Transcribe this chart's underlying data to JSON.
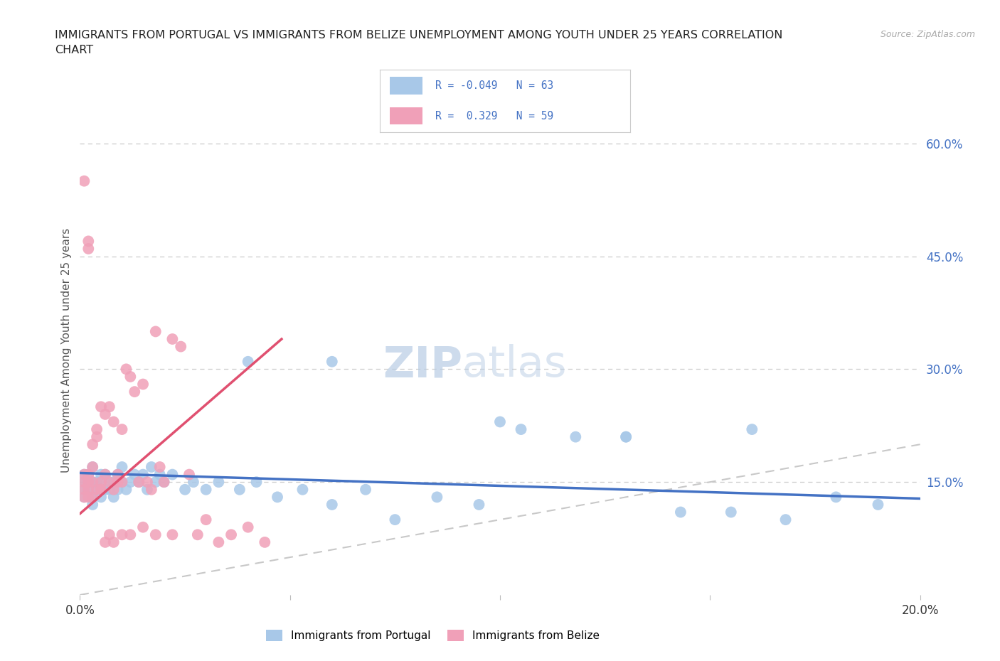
{
  "title": "IMMIGRANTS FROM PORTUGAL VS IMMIGRANTS FROM BELIZE UNEMPLOYMENT AMONG YOUTH UNDER 25 YEARS CORRELATION\nCHART",
  "source": "Source: ZipAtlas.com",
  "ylabel": "Unemployment Among Youth under 25 years",
  "xlim": [
    0.0,
    0.2
  ],
  "ylim": [
    0.0,
    0.65
  ],
  "y_ticks_right": [
    0.15,
    0.3,
    0.45,
    0.6
  ],
  "y_tick_labels_right": [
    "15.0%",
    "30.0%",
    "45.0%",
    "60.0%"
  ],
  "R_portugal": -0.049,
  "N_portugal": 63,
  "R_belize": 0.329,
  "N_belize": 59,
  "color_portugal": "#a8c8e8",
  "color_belize": "#f0a0b8",
  "color_portugal_line": "#4472c4",
  "color_belize_line": "#e05070",
  "color_diagonal": "#c8c8c8",
  "portugal_line_x": [
    0.0,
    0.2
  ],
  "portugal_line_y": [
    0.162,
    0.128
  ],
  "belize_line_x": [
    0.0,
    0.048
  ],
  "belize_line_y": [
    0.108,
    0.34
  ],
  "portugal_x": [
    0.001,
    0.001,
    0.001,
    0.001,
    0.002,
    0.002,
    0.002,
    0.003,
    0.003,
    0.003,
    0.003,
    0.004,
    0.004,
    0.005,
    0.005,
    0.005,
    0.006,
    0.006,
    0.007,
    0.007,
    0.008,
    0.008,
    0.009,
    0.009,
    0.01,
    0.01,
    0.011,
    0.012,
    0.013,
    0.014,
    0.015,
    0.016,
    0.017,
    0.018,
    0.019,
    0.02,
    0.022,
    0.025,
    0.027,
    0.03,
    0.033,
    0.038,
    0.042,
    0.047,
    0.053,
    0.06,
    0.068,
    0.075,
    0.085,
    0.095,
    0.105,
    0.118,
    0.13,
    0.143,
    0.155,
    0.168,
    0.04,
    0.06,
    0.1,
    0.13,
    0.16,
    0.18,
    0.19
  ],
  "portugal_y": [
    0.15,
    0.16,
    0.14,
    0.13,
    0.15,
    0.14,
    0.16,
    0.15,
    0.13,
    0.17,
    0.12,
    0.15,
    0.14,
    0.16,
    0.15,
    0.13,
    0.14,
    0.16,
    0.15,
    0.14,
    0.15,
    0.13,
    0.16,
    0.14,
    0.15,
    0.17,
    0.14,
    0.15,
    0.16,
    0.15,
    0.16,
    0.14,
    0.17,
    0.15,
    0.16,
    0.15,
    0.16,
    0.14,
    0.15,
    0.14,
    0.15,
    0.14,
    0.15,
    0.13,
    0.14,
    0.12,
    0.14,
    0.1,
    0.13,
    0.12,
    0.22,
    0.21,
    0.21,
    0.11,
    0.11,
    0.1,
    0.31,
    0.31,
    0.23,
    0.21,
    0.22,
    0.13,
    0.12
  ],
  "belize_x": [
    0.001,
    0.001,
    0.001,
    0.001,
    0.002,
    0.002,
    0.002,
    0.002,
    0.003,
    0.003,
    0.003,
    0.004,
    0.004,
    0.005,
    0.005,
    0.005,
    0.006,
    0.006,
    0.007,
    0.007,
    0.008,
    0.008,
    0.009,
    0.009,
    0.01,
    0.01,
    0.011,
    0.012,
    0.013,
    0.014,
    0.015,
    0.016,
    0.017,
    0.018,
    0.019,
    0.02,
    0.022,
    0.024,
    0.026,
    0.028,
    0.03,
    0.033,
    0.036,
    0.04,
    0.044,
    0.002,
    0.003,
    0.004,
    0.005,
    0.006,
    0.007,
    0.008,
    0.01,
    0.012,
    0.015,
    0.018,
    0.022,
    0.001,
    0.002
  ],
  "belize_y": [
    0.15,
    0.14,
    0.13,
    0.16,
    0.15,
    0.14,
    0.16,
    0.13,
    0.2,
    0.15,
    0.17,
    0.22,
    0.21,
    0.25,
    0.14,
    0.15,
    0.24,
    0.16,
    0.25,
    0.15,
    0.23,
    0.14,
    0.15,
    0.16,
    0.22,
    0.15,
    0.3,
    0.29,
    0.27,
    0.15,
    0.28,
    0.15,
    0.14,
    0.35,
    0.17,
    0.15,
    0.34,
    0.33,
    0.16,
    0.08,
    0.1,
    0.07,
    0.08,
    0.09,
    0.07,
    0.47,
    0.13,
    0.14,
    0.14,
    0.07,
    0.08,
    0.07,
    0.08,
    0.08,
    0.09,
    0.08,
    0.08,
    0.55,
    0.46
  ]
}
